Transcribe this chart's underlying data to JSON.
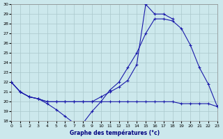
{
  "xlabel": "Graphe des températures (°c)",
  "ylim": [
    18,
    30
  ],
  "xlim": [
    0,
    23
  ],
  "bg_color": "#cce8ec",
  "grid_color": "#aac8cc",
  "line_color": "#1a1aaa",
  "line1_x": [
    0,
    1,
    2,
    3,
    4,
    5,
    6,
    7,
    8,
    9,
    10,
    11,
    12,
    13,
    14,
    15,
    16,
    17,
    18,
    19,
    20,
    21,
    22,
    23
  ],
  "line1_y": [
    22.0,
    21.0,
    20.5,
    20.3,
    19.8,
    19.2,
    18.5,
    17.8,
    17.8,
    19.0,
    20.0,
    21.2,
    22.0,
    23.5,
    25.0,
    27.0,
    28.5,
    28.5,
    28.3,
    27.5,
    25.8,
    23.5,
    21.8,
    19.5
  ],
  "line2_x": [
    0,
    1,
    2,
    3,
    4,
    5,
    6,
    7,
    8,
    9,
    10,
    11,
    12,
    13,
    14,
    15,
    16,
    17,
    18,
    19,
    20,
    21,
    22,
    23
  ],
  "line2_y": [
    22.0,
    21.0,
    20.5,
    20.3,
    20.0,
    20.0,
    20.0,
    20.0,
    20.0,
    20.0,
    20.5,
    21.0,
    21.5,
    22.2,
    23.8,
    30.0,
    29.0,
    29.0,
    28.5,
    null,
    null,
    null,
    null,
    null
  ],
  "line3_x": [
    0,
    1,
    2,
    3,
    4,
    5,
    6,
    7,
    8,
    9,
    10,
    11,
    12,
    13,
    14,
    15,
    16,
    17,
    18,
    19,
    20,
    21,
    22,
    23
  ],
  "line3_y": [
    22.0,
    21.0,
    20.5,
    20.3,
    20.0,
    20.0,
    20.0,
    20.0,
    20.0,
    20.0,
    20.0,
    20.0,
    20.0,
    20.0,
    20.0,
    20.0,
    20.0,
    20.0,
    20.0,
    19.8,
    19.8,
    19.8,
    19.8,
    19.5
  ],
  "yticks": [
    18,
    19,
    20,
    21,
    22,
    23,
    24,
    25,
    26,
    27,
    28,
    29,
    30
  ],
  "xticks": [
    0,
    1,
    2,
    3,
    4,
    5,
    6,
    7,
    8,
    9,
    10,
    11,
    12,
    13,
    14,
    15,
    16,
    17,
    18,
    19,
    20,
    21,
    22,
    23
  ]
}
